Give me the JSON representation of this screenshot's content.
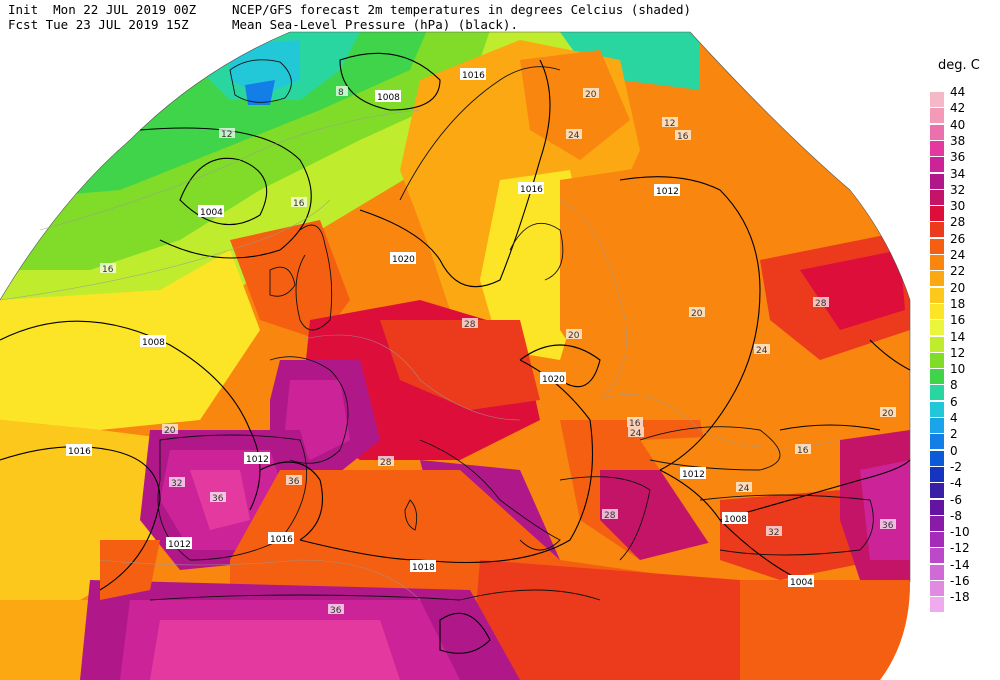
{
  "header": {
    "line1_left": "Init  Mon 22 JUL 2019 00Z",
    "line2_left": "Fcst Tue 23 JUL 2019 15Z",
    "line1_right": "NCEP/GFS forecast 2m temperatures in degrees Celcius (shaded)",
    "line2_right": "Mean Sea-Level Pressure (hPa) (black)."
  },
  "legend": {
    "title": "deg. C",
    "items": [
      {
        "label": "44",
        "color": "#f5b8c8"
      },
      {
        "label": "42",
        "color": "#f29ab8"
      },
      {
        "label": "40",
        "color": "#ec6fae"
      },
      {
        "label": "38",
        "color": "#e43a9f"
      },
      {
        "label": "36",
        "color": "#cc2398"
      },
      {
        "label": "34",
        "color": "#b0188a"
      },
      {
        "label": "32",
        "color": "#c41468"
      },
      {
        "label": "30",
        "color": "#dd0f3a"
      },
      {
        "label": "28",
        "color": "#ec3a1d"
      },
      {
        "label": "26",
        "color": "#f45f12"
      },
      {
        "label": "24",
        "color": "#f8860f"
      },
      {
        "label": "22",
        "color": "#fba812"
      },
      {
        "label": "20",
        "color": "#fcc81c"
      },
      {
        "label": "18",
        "color": "#fce427"
      },
      {
        "label": "16",
        "color": "#eaf53b"
      },
      {
        "label": "14",
        "color": "#c0ec2e"
      },
      {
        "label": "12",
        "color": "#80dc28"
      },
      {
        "label": "10",
        "color": "#3fd44a"
      },
      {
        "label": "8",
        "color": "#2ad6a0"
      },
      {
        "label": "6",
        "color": "#22c8d8"
      },
      {
        "label": "4",
        "color": "#1aa4ea"
      },
      {
        "label": "2",
        "color": "#137ee8"
      },
      {
        "label": "0",
        "color": "#0d5ad8"
      },
      {
        "label": "-2",
        "color": "#1634c0"
      },
      {
        "label": "-4",
        "color": "#3a1ea8"
      },
      {
        "label": "-6",
        "color": "#6414a0"
      },
      {
        "label": "-8",
        "color": "#8a1aa8"
      },
      {
        "label": "-10",
        "color": "#a42cb8"
      },
      {
        "label": "-12",
        "color": "#bc4ac8"
      },
      {
        "label": "-14",
        "color": "#d06ad6"
      },
      {
        "label": "-16",
        "color": "#e18ae2"
      },
      {
        "label": "-18",
        "color": "#f0aaee"
      }
    ]
  },
  "isobar_labels": [
    "1008",
    "1004",
    "1016",
    "1020",
    "1016",
    "1012",
    "1008",
    "1008",
    "1004",
    "1012",
    "1016",
    "1012",
    "1016",
    "1018",
    "1020",
    "1012"
  ],
  "temp_labels": [
    "8",
    "12",
    "16",
    "16",
    "20",
    "24",
    "28",
    "20",
    "16",
    "12",
    "16",
    "20",
    "24",
    "28",
    "32",
    "36",
    "36",
    "28",
    "20",
    "24",
    "16",
    "20",
    "24",
    "28",
    "32",
    "36",
    "36"
  ]
}
